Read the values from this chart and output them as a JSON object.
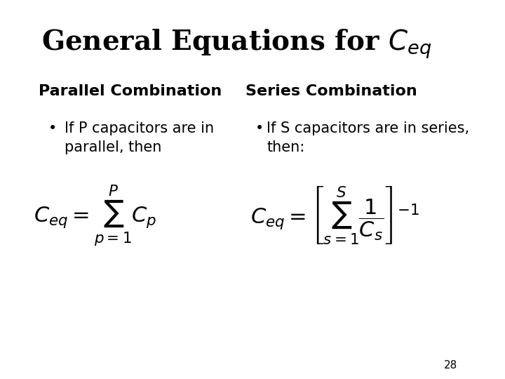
{
  "title": "General Equations for $C_{eq}$",
  "title_fontsize": 28,
  "title_fontstyle": "bold",
  "bg_color": "#ffffff",
  "text_color": "#000000",
  "left_heading": "Parallel Combination",
  "right_heading": "Series Combination",
  "left_bullet": "If P capacitors are in\nparallel, then",
  "right_bullet": "If S capacitors are in series,\nthen:",
  "left_formula": "$C_{eq} = \\sum_{p=1}^{P} C_p$",
  "right_formula": "$C_{eq} = \\left[\\sum_{s=1}^{S} \\dfrac{1}{C_s}\\right]^{-1}$",
  "page_number": "28",
  "heading_fontsize": 16,
  "bullet_fontsize": 15,
  "formula_fontsize": 22
}
